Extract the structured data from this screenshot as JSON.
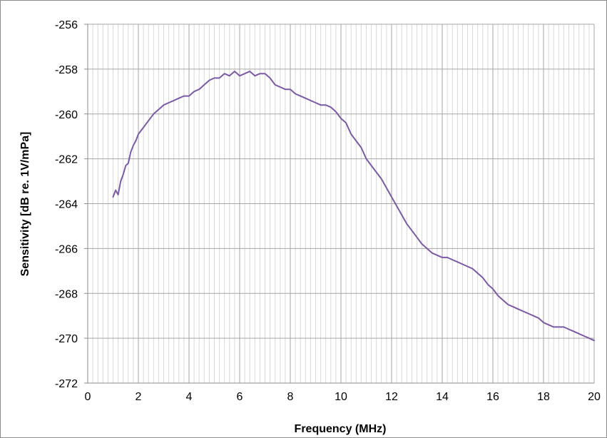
{
  "chart_data": {
    "type": "line",
    "title": "",
    "xlabel": "Frequency (MHz)",
    "ylabel": "Sensitivity [dB re. 1V/mPa]",
    "xlim": [
      0,
      20
    ],
    "ylim": [
      -272,
      -256
    ],
    "x_ticks": [
      0,
      2,
      4,
      6,
      8,
      10,
      12,
      14,
      16,
      18,
      20
    ],
    "y_ticks": [
      -256,
      -258,
      -260,
      -262,
      -264,
      -266,
      -268,
      -270,
      -272
    ],
    "x_minor_step": 0.2,
    "grid": true,
    "legend": "none",
    "line_color": "#7b5aa6",
    "series": [
      {
        "x": [
          1.0,
          1.1,
          1.2,
          1.3,
          1.4,
          1.5,
          1.6,
          1.7,
          1.8,
          1.9,
          2.0,
          2.2,
          2.4,
          2.6,
          2.8,
          3.0,
          3.2,
          3.4,
          3.6,
          3.8,
          4.0,
          4.2,
          4.4,
          4.6,
          4.8,
          5.0,
          5.2,
          5.4,
          5.6,
          5.8,
          6.0,
          6.2,
          6.4,
          6.6,
          6.8,
          7.0,
          7.2,
          7.4,
          7.6,
          7.8,
          8.0,
          8.2,
          8.4,
          8.6,
          8.8,
          9.0,
          9.2,
          9.4,
          9.6,
          9.8,
          10.0,
          10.2,
          10.4,
          10.6,
          10.8,
          11.0,
          11.2,
          11.4,
          11.6,
          11.8,
          12.0,
          12.2,
          12.4,
          12.6,
          12.8,
          13.0,
          13.2,
          13.4,
          13.6,
          13.8,
          14.0,
          14.2,
          14.4,
          14.6,
          14.8,
          15.0,
          15.2,
          15.4,
          15.6,
          15.8,
          16.0,
          16.2,
          16.4,
          16.6,
          16.8,
          17.0,
          17.2,
          17.4,
          17.6,
          17.8,
          18.0,
          18.2,
          18.4,
          18.6,
          18.8,
          19.0,
          19.2,
          19.4,
          19.6,
          19.8,
          20.0
        ],
        "y": [
          -263.7,
          -263.4,
          -263.6,
          -263.0,
          -262.7,
          -262.3,
          -262.2,
          -261.7,
          -261.4,
          -261.2,
          -260.9,
          -260.6,
          -260.3,
          -260.0,
          -259.8,
          -259.6,
          -259.5,
          -259.4,
          -259.3,
          -259.2,
          -259.2,
          -259.0,
          -258.9,
          -258.7,
          -258.5,
          -258.4,
          -258.4,
          -258.2,
          -258.3,
          -258.1,
          -258.3,
          -258.2,
          -258.1,
          -258.3,
          -258.2,
          -258.2,
          -258.4,
          -258.7,
          -258.8,
          -258.9,
          -258.9,
          -259.1,
          -259.2,
          -259.3,
          -259.4,
          -259.5,
          -259.6,
          -259.6,
          -259.7,
          -259.9,
          -260.2,
          -260.4,
          -260.9,
          -261.2,
          -261.5,
          -262.0,
          -262.3,
          -262.6,
          -262.9,
          -263.3,
          -263.7,
          -264.1,
          -264.5,
          -264.9,
          -265.2,
          -265.5,
          -265.8,
          -266.0,
          -266.2,
          -266.3,
          -266.4,
          -266.4,
          -266.5,
          -266.6,
          -266.7,
          -266.8,
          -266.9,
          -267.1,
          -267.3,
          -267.6,
          -267.8,
          -268.1,
          -268.3,
          -268.5,
          -268.6,
          -268.7,
          -268.8,
          -268.9,
          -269.0,
          -269.1,
          -269.3,
          -269.4,
          -269.5,
          -269.5,
          -269.5,
          -269.6,
          -269.7,
          -269.8,
          -269.9,
          -270.0,
          -270.1
        ]
      }
    ]
  }
}
